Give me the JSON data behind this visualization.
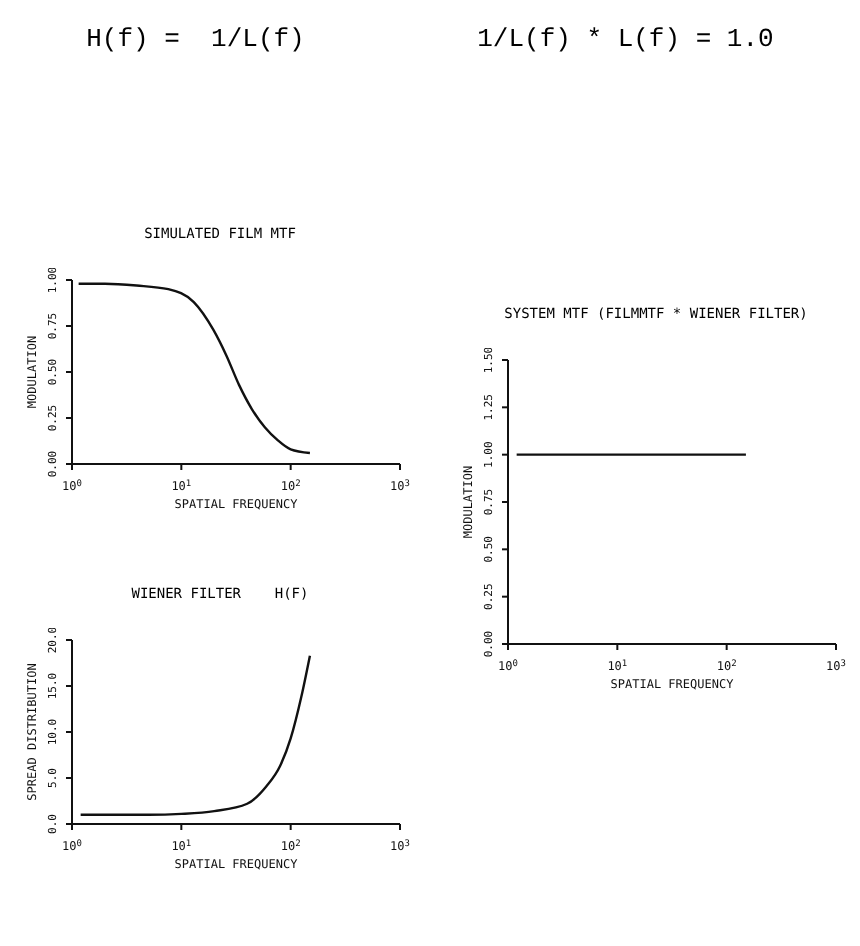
{
  "chart_data": [
    {
      "type": "other",
      "annotations": [
        "H(f) =  1/L(f)",
        "1/L(f) * L(f) = 1.0"
      ]
    },
    {
      "type": "line",
      "title": "SIMULATED FILM MTF",
      "xlabel": "SPATIAL FREQUENCY",
      "ylabel": "MODULATION",
      "log": "x",
      "color": "#111111",
      "grid": false,
      "legend": false,
      "x": [
        1.15,
        2,
        3.9,
        7.6,
        13,
        19.6,
        25.8,
        33.7,
        44,
        58,
        76,
        100,
        150
      ],
      "values": [
        0.98,
        0.98,
        0.97,
        0.95,
        0.88,
        0.73,
        0.59,
        0.43,
        0.3,
        0.2,
        0.13,
        0.08,
        0.06
      ],
      "xlim": [
        1,
        1000
      ],
      "xticks": [
        {
          "value": 1,
          "label": "10$^{0}$"
        },
        {
          "value": 10,
          "label": "10$^{1}$"
        },
        {
          "value": 100,
          "label": "10$^{2}$"
        },
        {
          "value": 1000,
          "label": "10$^{3}$"
        }
      ],
      "ylim": [
        0,
        1
      ],
      "yticks": [
        {
          "value": 0,
          "label": "0.00"
        },
        {
          "value": 0.25,
          "label": "0.25"
        },
        {
          "value": 0.5,
          "label": "0.50"
        },
        {
          "value": 0.75,
          "label": "0.75"
        },
        {
          "value": 1,
          "label": "1.00"
        }
      ]
    },
    {
      "type": "line",
      "title": "WIENER FILTER    H(F)",
      "xlabel": "SPATIAL FREQUENCY",
      "ylabel": "SPREAD DISTRIBUTION",
      "log": "x",
      "color": "#111111",
      "grid": false,
      "legend": false,
      "x": [
        1.2,
        5,
        10,
        20,
        40,
        60,
        80,
        100,
        125,
        150
      ],
      "values": [
        1.0,
        1.0,
        1.1,
        1.4,
        2.2,
        4.1,
        6.3,
        9.3,
        13.8,
        18.3
      ],
      "xlim": [
        1,
        1000
      ],
      "xticks": [
        {
          "value": 1,
          "label": "10$^{0}$"
        },
        {
          "value": 10,
          "label": "10$^{1}$"
        },
        {
          "value": 100,
          "label": "10$^{2}$"
        },
        {
          "value": 1000,
          "label": "10$^{3}$"
        }
      ],
      "ylim": [
        0,
        20
      ],
      "yticks": [
        {
          "value": 0,
          "label": "0.0"
        },
        {
          "value": 5,
          "label": "5.0"
        },
        {
          "value": 10,
          "label": "10.0"
        },
        {
          "value": 15,
          "label": "15.0"
        },
        {
          "value": 20,
          "label": "20.0"
        }
      ]
    },
    {
      "type": "line",
      "title": "SYSTEM MTF (FILMMTF * WIENER FILTER)",
      "xlabel": "SPATIAL FREQUENCY",
      "ylabel": "MODULATION",
      "log": "x",
      "color": "#111111",
      "grid": false,
      "legend": false,
      "x": [
        1.2,
        150
      ],
      "values": [
        1.0,
        1.0
      ],
      "xlim": [
        1,
        1000
      ],
      "xticks": [
        {
          "value": 1,
          "label": "10$^{0}$"
        },
        {
          "value": 10,
          "label": "10$^{1}$"
        },
        {
          "value": 100,
          "label": "10$^{2}$"
        },
        {
          "value": 1000,
          "label": "10$^{3}$"
        }
      ],
      "ylim": [
        0,
        1.5
      ],
      "yticks": [
        {
          "value": 0,
          "label": "0.00"
        },
        {
          "value": 0.25,
          "label": "0.25"
        },
        {
          "value": 0.5,
          "label": "0.50"
        },
        {
          "value": 0.75,
          "label": "0.75"
        },
        {
          "value": 1,
          "label": "1.00"
        },
        {
          "value": 1.25,
          "label": "1.25"
        },
        {
          "value": 1.5,
          "label": "1.50"
        }
      ]
    }
  ]
}
